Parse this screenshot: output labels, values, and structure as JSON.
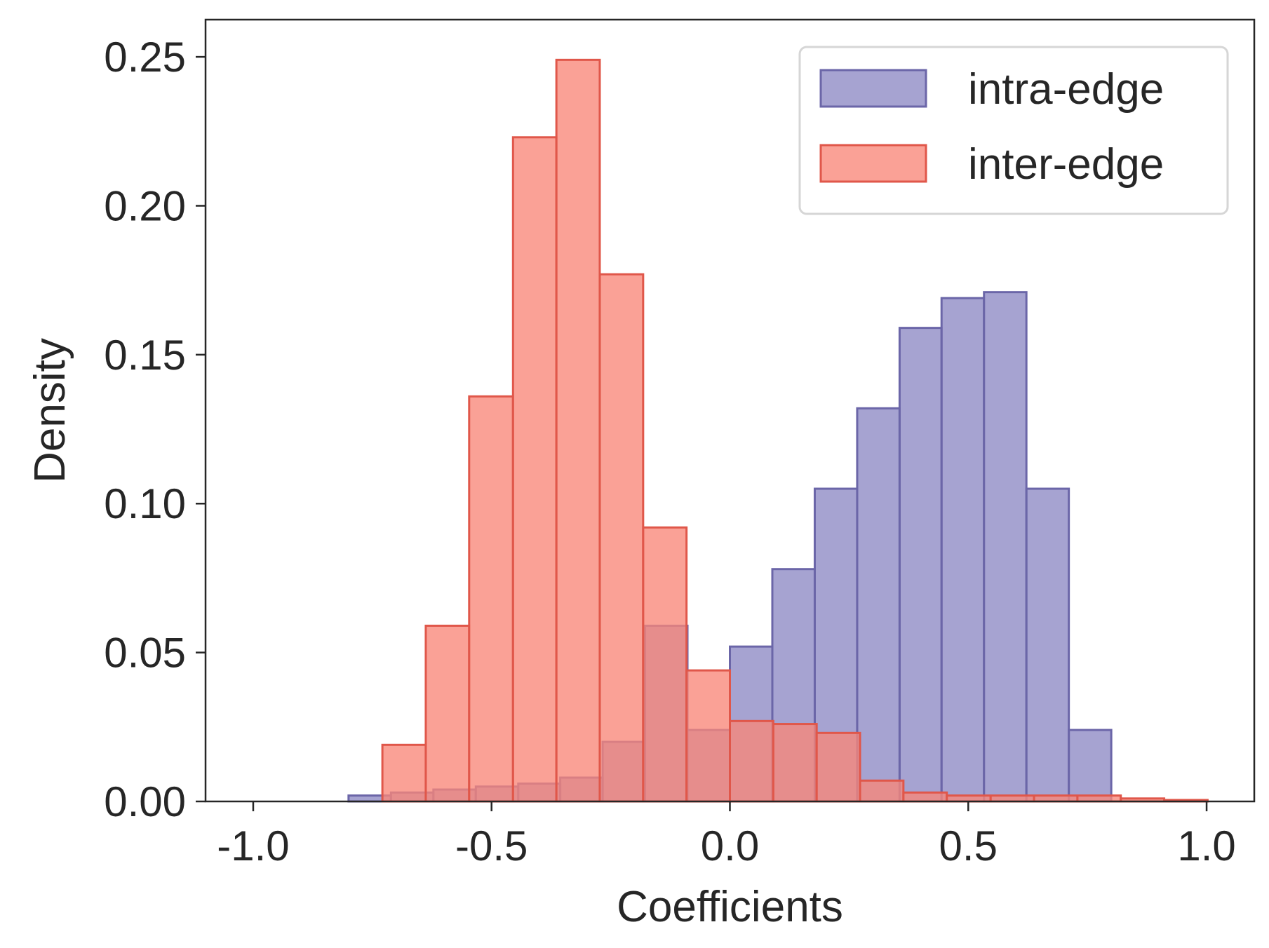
{
  "colors": {
    "intra_fill": "#8d89c4",
    "intra_edge": "#6b66a8",
    "inter_fill": "#f88778",
    "inter_edge": "#e0574a",
    "axis": "#262626",
    "legend_border": "#d6d6d6"
  },
  "chart_data": {
    "type": "bar",
    "subtype": "overlaid-histogram",
    "title": "",
    "xlabel": "Coefficients",
    "ylabel": "Density",
    "xlim": [
      -1.1,
      1.1
    ],
    "ylim": [
      0.0,
      0.2625
    ],
    "xticks": [
      -1.0,
      -0.5,
      0.0,
      0.5,
      1.0
    ],
    "xtick_labels": [
      "-1.0",
      "-0.5",
      "0.0",
      "0.5",
      "1.0"
    ],
    "yticks": [
      0.0,
      0.05,
      0.1,
      0.15,
      0.2,
      0.25
    ],
    "ytick_labels": [
      "0.00",
      "0.05",
      "0.10",
      "0.15",
      "0.20",
      "0.25"
    ],
    "grid": false,
    "legend_position": "top-right",
    "series": [
      {
        "name": "intra-edge",
        "bin_width": 0.0889,
        "bin_edges": [
          -0.8,
          -0.711,
          -0.622,
          -0.533,
          -0.444,
          -0.356,
          -0.267,
          -0.178,
          -0.089,
          0.0,
          0.089,
          0.178,
          0.267,
          0.356,
          0.444,
          0.533,
          0.622,
          0.711,
          0.8
        ],
        "values": [
          0.002,
          0.003,
          0.004,
          0.005,
          0.006,
          0.008,
          0.02,
          0.059,
          0.024,
          0.052,
          0.078,
          0.105,
          0.132,
          0.159,
          0.169,
          0.171,
          0.105,
          0.024
        ]
      },
      {
        "name": "inter-edge",
        "bin_width": 0.0912,
        "bin_edges": [
          -0.729,
          -0.638,
          -0.547,
          -0.455,
          -0.364,
          -0.273,
          -0.182,
          -0.091,
          0.0,
          0.091,
          0.182,
          0.273,
          0.364,
          0.455,
          0.547,
          0.638,
          0.729,
          0.82,
          0.911,
          1.002
        ],
        "values": [
          0.019,
          0.059,
          0.136,
          0.223,
          0.249,
          0.177,
          0.092,
          0.044,
          0.027,
          0.026,
          0.023,
          0.007,
          0.003,
          0.002,
          0.002,
          0.002,
          0.002,
          0.001,
          0.0005
        ]
      }
    ]
  }
}
